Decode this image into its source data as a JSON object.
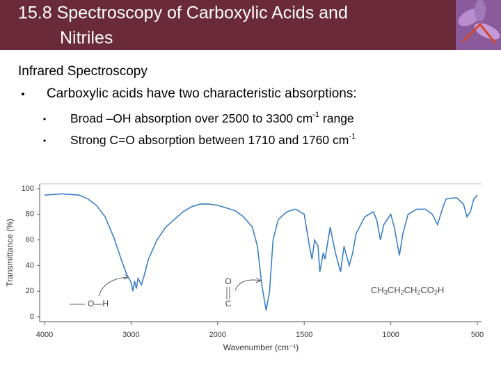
{
  "header": {
    "title_line1": "15.8 Spectroscopy of Carboxylic Acids and",
    "title_line2": "Nitriles"
  },
  "body": {
    "heading": "Infrared Spectroscopy",
    "bullet": "Carboxylic acids have two characteristic absorptions:",
    "sub_bullets": [
      {
        "text": "Broad –OH absorption over 2500 to 3300 cm",
        "sup": "-1",
        "tail": " range"
      },
      {
        "text": "Strong C=O absorption between 1710 and 1760 cm",
        "sup": "-1",
        "tail": ""
      }
    ]
  },
  "chart_data": {
    "type": "line",
    "xlabel": "Wavenumber (cm⁻¹)",
    "ylabel": "Transmittance (%)",
    "color": "#3a7fc4",
    "xlim": [
      4000,
      500
    ],
    "ylim": [
      0,
      100
    ],
    "xticks": [
      4000,
      3000,
      2000,
      1500,
      1000,
      500
    ],
    "yticks": [
      0,
      20,
      40,
      60,
      80,
      100
    ],
    "annotations": {
      "oh": "O—H",
      "o": "O",
      "c": "C",
      "formula": "CH3CH2CH2CO2H"
    },
    "x": [
      4000,
      3800,
      3600,
      3500,
      3400,
      3300,
      3200,
      3100,
      3050,
      3000,
      2980,
      2960,
      2940,
      2920,
      2880,
      2850,
      2800,
      2700,
      2600,
      2500,
      2400,
      2300,
      2200,
      2100,
      2000,
      1900,
      1850,
      1800,
      1770,
      1745,
      1720,
      1700,
      1680,
      1650,
      1600,
      1550,
      1500,
      1470,
      1455,
      1440,
      1420,
      1410,
      1390,
      1380,
      1350,
      1320,
      1290,
      1270,
      1240,
      1220,
      1200,
      1150,
      1100,
      1080,
      1060,
      1040,
      1000,
      980,
      950,
      930,
      900,
      850,
      800,
      760,
      730,
      700,
      680,
      620,
      580,
      560,
      540,
      520,
      500
    ],
    "values": [
      95,
      96,
      95,
      92,
      87,
      78,
      62,
      42,
      33,
      27,
      20,
      28,
      22,
      30,
      25,
      32,
      45,
      60,
      70,
      76,
      82,
      86,
      88,
      88,
      87,
      83,
      78,
      70,
      55,
      25,
      5,
      20,
      60,
      76,
      82,
      84,
      80,
      55,
      45,
      60,
      55,
      35,
      50,
      45,
      70,
      50,
      35,
      55,
      40,
      50,
      65,
      78,
      82,
      75,
      60,
      72,
      80,
      70,
      48,
      65,
      80,
      84,
      84,
      80,
      72,
      85,
      92,
      93,
      88,
      78,
      82,
      92,
      95
    ]
  }
}
